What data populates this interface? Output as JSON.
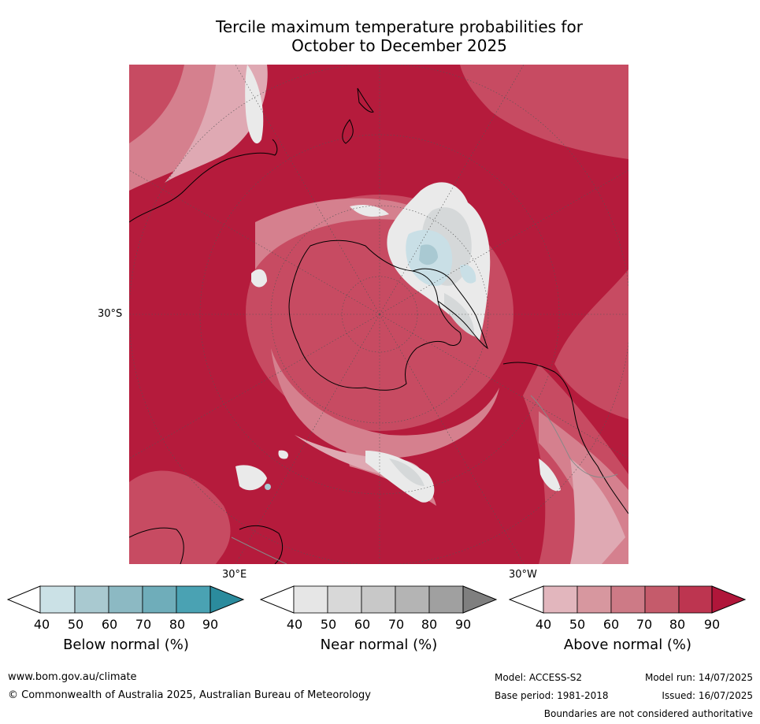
{
  "title": {
    "line1": "Tercile maximum temperature probabilities for",
    "line2": "October to December 2025"
  },
  "map": {
    "projection": "south-polar",
    "lat_label": "30°S",
    "lon_labels": [
      "30°E",
      "30°W"
    ],
    "colors": {
      "ocean_base": "#b51b3c",
      "above_70": "#c74b62",
      "above_60": "#d5808e",
      "above_50": "#dfa9b3",
      "near": "#e8e8e8",
      "below": "#c9dfe6",
      "below_strong": "#a9c9d2",
      "coastline": "#000000",
      "border": "#888888"
    }
  },
  "colorbars": [
    {
      "id": "below",
      "title": "Below normal (%)",
      "ticks": [
        "40",
        "50",
        "60",
        "70",
        "80",
        "90"
      ],
      "colors": [
        "#ffffff",
        "#cbe1e6",
        "#a9c9d0",
        "#8cb9c3",
        "#6fadba",
        "#4aa2b3",
        "#2b8b9d"
      ]
    },
    {
      "id": "near",
      "title": "Near normal (%)",
      "ticks": [
        "40",
        "50",
        "60",
        "70",
        "80",
        "90"
      ],
      "colors": [
        "#ffffff",
        "#e6e6e6",
        "#d8d8d8",
        "#c8c8c8",
        "#b4b4b4",
        "#a0a0a0",
        "#7f7f7f"
      ]
    },
    {
      "id": "above",
      "title": "Above normal (%)",
      "ticks": [
        "40",
        "50",
        "60",
        "70",
        "80",
        "90"
      ],
      "colors": [
        "#ffffff",
        "#e2b6bd",
        "#d7979f",
        "#cd7a86",
        "#c55b6b",
        "#bd3550",
        "#b0163a"
      ]
    }
  ],
  "footer": {
    "url": "www.bom.gov.au/climate",
    "copyright": "© Commonwealth of Australia 2025, Australian Bureau of Meteorology",
    "model": "Model: ACCESS-S2",
    "base_period": "Base period: 1981-2018",
    "model_run": "Model run: 14/07/2025",
    "issued": "Issued: 16/07/2025",
    "disclaimer": "Boundaries are not considered authoritative"
  }
}
